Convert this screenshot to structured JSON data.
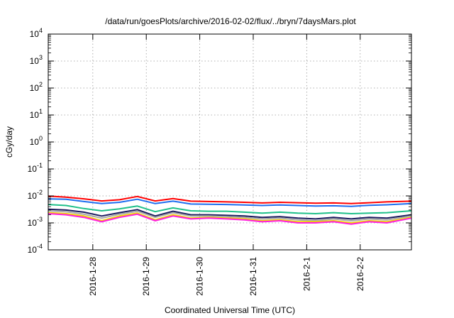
{
  "chart_data": {
    "type": "line",
    "title": "/data/run/goesPlots/archive/2016-02-02/flux/../bryn/7daysMars.plot",
    "xlabel": "Coordinated Universal Time (UTC)",
    "ylabel": "cGy/day",
    "yscale": "log",
    "ylim": [
      0.0001,
      10000
    ],
    "xlim": [
      "2016-01-27 04:00",
      "2016-02-02 23:00"
    ],
    "grid": true,
    "legend": "none",
    "y_ticks": [
      {
        "value": 0.0001,
        "base": "10",
        "exp": "-4"
      },
      {
        "value": 0.001,
        "base": "10",
        "exp": "-3"
      },
      {
        "value": 0.01,
        "base": "10",
        "exp": "-2"
      },
      {
        "value": 0.1,
        "base": "10",
        "exp": "-1"
      },
      {
        "value": 1,
        "base": "10",
        "exp": "0"
      },
      {
        "value": 10,
        "base": "10",
        "exp": "1"
      },
      {
        "value": 100,
        "base": "10",
        "exp": "2"
      },
      {
        "value": 1000,
        "base": "10",
        "exp": "3"
      },
      {
        "value": 10000,
        "base": "10",
        "exp": "4"
      }
    ],
    "x_ticks": [
      {
        "value": "2016-01-28 00:00",
        "label": "2016-1-28"
      },
      {
        "value": "2016-01-29 00:00",
        "label": "2016-1-29"
      },
      {
        "value": "2016-01-30 00:00",
        "label": "2016-1-30"
      },
      {
        "value": "2016-01-31 00:00",
        "label": "2016-1-31"
      },
      {
        "value": "2016-02-01 00:00",
        "label": "2016-2-1"
      },
      {
        "value": "2016-02-02 00:00",
        "label": "2016-2-2"
      }
    ],
    "x": [
      "2016-01-27 04:00",
      "2016-01-27 12:00",
      "2016-01-27 20:00",
      "2016-01-28 04:00",
      "2016-01-28 12:00",
      "2016-01-28 20:00",
      "2016-01-29 04:00",
      "2016-01-29 12:00",
      "2016-01-29 20:00",
      "2016-01-30 04:00",
      "2016-01-30 12:00",
      "2016-01-30 20:00",
      "2016-01-31 04:00",
      "2016-01-31 12:00",
      "2016-01-31 20:00",
      "2016-02-01 04:00",
      "2016-02-01 12:00",
      "2016-02-01 20:00",
      "2016-02-02 04:00",
      "2016-02-02 12:00",
      "2016-02-02 23:00"
    ],
    "series": [
      {
        "color": "#ff0000",
        "values": [
          0.0098,
          0.009,
          0.0078,
          0.0065,
          0.0072,
          0.0095,
          0.0065,
          0.008,
          0.0064,
          0.0062,
          0.006,
          0.0058,
          0.0055,
          0.0058,
          0.0056,
          0.0054,
          0.0055,
          0.0052,
          0.0056,
          0.006,
          0.0064
        ]
      },
      {
        "color": "#1e6ef0",
        "values": [
          0.0078,
          0.0075,
          0.0062,
          0.0052,
          0.0058,
          0.0075,
          0.0052,
          0.0064,
          0.005,
          0.0049,
          0.0048,
          0.0046,
          0.0044,
          0.0046,
          0.0044,
          0.0042,
          0.0043,
          0.0041,
          0.0045,
          0.0047,
          0.0052
        ]
      },
      {
        "color": "#1fc08a",
        "values": [
          0.0048,
          0.0044,
          0.0034,
          0.0028,
          0.0033,
          0.0042,
          0.0026,
          0.0036,
          0.0028,
          0.0027,
          0.0027,
          0.0025,
          0.0023,
          0.0025,
          0.0023,
          0.0022,
          0.0024,
          0.0022,
          0.0023,
          0.0024,
          0.0028
        ]
      },
      {
        "color": "#1a1a5e",
        "values": [
          0.0032,
          0.003,
          0.0025,
          0.0018,
          0.0024,
          0.0031,
          0.0018,
          0.0027,
          0.002,
          0.002,
          0.0019,
          0.0018,
          0.0016,
          0.0017,
          0.0015,
          0.0014,
          0.0016,
          0.0014,
          0.0016,
          0.0015,
          0.002
        ]
      },
      {
        "color": "#a8a8a8",
        "values": [
          0.0028,
          0.0026,
          0.0021,
          0.0015,
          0.0021,
          0.0027,
          0.0016,
          0.0024,
          0.0018,
          0.0018,
          0.0017,
          0.0016,
          0.0014,
          0.0015,
          0.0013,
          0.0012,
          0.0014,
          0.0012,
          0.0014,
          0.0013,
          0.0018
        ]
      },
      {
        "color": "#f0d000",
        "values": [
          0.0024,
          0.0022,
          0.0018,
          0.0012,
          0.0018,
          0.0023,
          0.0013,
          0.002,
          0.0015,
          0.0016,
          0.0015,
          0.0014,
          0.0012,
          0.0013,
          0.0011,
          0.0011,
          0.0012,
          0.001,
          0.0012,
          0.0011,
          0.0016
        ]
      },
      {
        "color": "#ff20e0",
        "values": [
          0.0022,
          0.002,
          0.0016,
          0.0011,
          0.0016,
          0.0021,
          0.0012,
          0.0018,
          0.0014,
          0.0015,
          0.0014,
          0.0013,
          0.0011,
          0.0012,
          0.001,
          0.001,
          0.0011,
          0.0009,
          0.0011,
          0.001,
          0.0015
        ]
      }
    ]
  }
}
